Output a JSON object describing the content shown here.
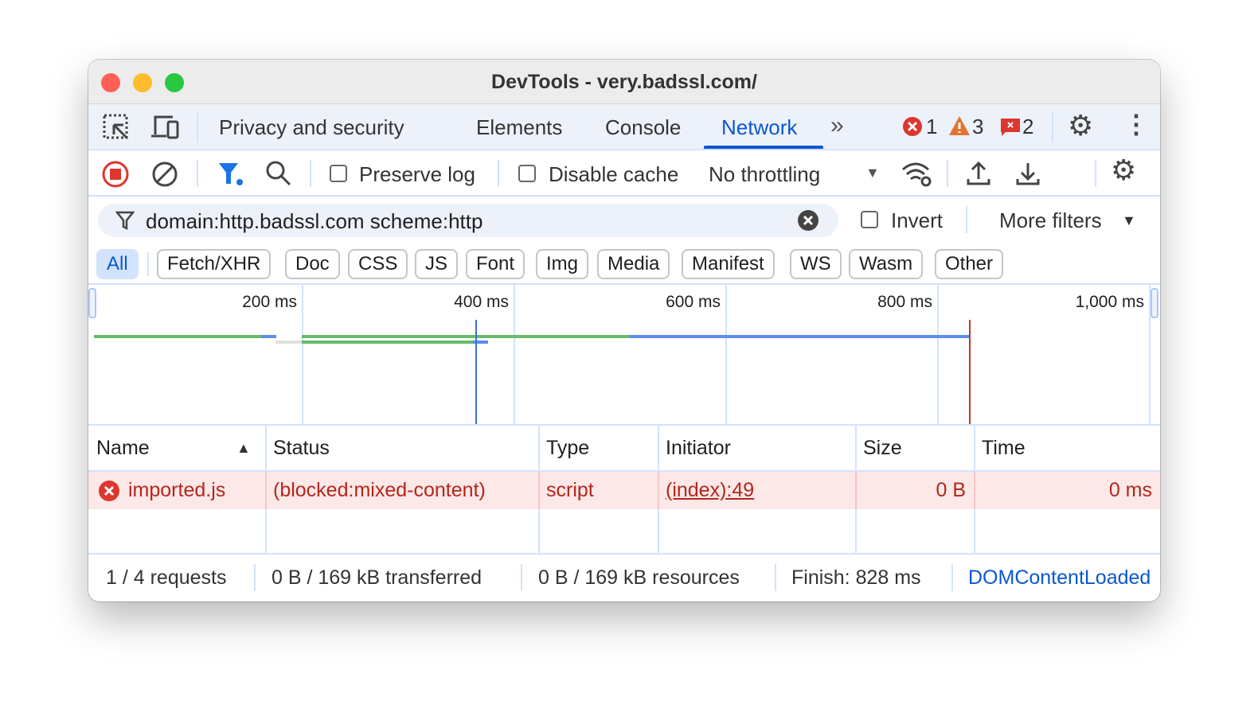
{
  "window": {
    "title": "DevTools - very.badssl.com/"
  },
  "tabs": {
    "items": [
      "Privacy and security",
      "Elements",
      "Console",
      "Network"
    ],
    "active": "Network",
    "accent": "#0b57d0",
    "badges": {
      "errors": "1",
      "warnings": "3",
      "issues": "2"
    }
  },
  "toolbar": {
    "preserve_log": "Preserve log",
    "disable_cache": "Disable cache",
    "throttling": "No throttling"
  },
  "filter": {
    "value": "domain:http.badssl.com scheme:http",
    "invert": "Invert",
    "more_filters": "More filters"
  },
  "types": [
    "All",
    "Fetch/XHR",
    "Doc",
    "CSS",
    "JS",
    "Font",
    "Img",
    "Media",
    "Manifest",
    "WS",
    "Wasm",
    "Other"
  ],
  "timeline": {
    "ticks": [
      "200 ms",
      "400 ms",
      "600 ms",
      "800 ms",
      "1,000 ms"
    ],
    "dom_content_loaded_ms": 364,
    "load_ms": 830
  },
  "table": {
    "columns": [
      "Name",
      "Status",
      "Type",
      "Initiator",
      "Size",
      "Time"
    ],
    "sort": "Name ascending",
    "rows": [
      {
        "name": "imported.js",
        "status": "(blocked:mixed-content)",
        "type": "script",
        "initiator": "(index):49",
        "size": "0 B",
        "time": "0 ms"
      }
    ]
  },
  "footer": {
    "requests": "1 / 4 requests",
    "transferred": "0 B / 169 kB transferred",
    "resources": "0 B / 169 kB resources",
    "finish": "Finish: 828 ms",
    "dcl": "DOMContentLoaded"
  }
}
